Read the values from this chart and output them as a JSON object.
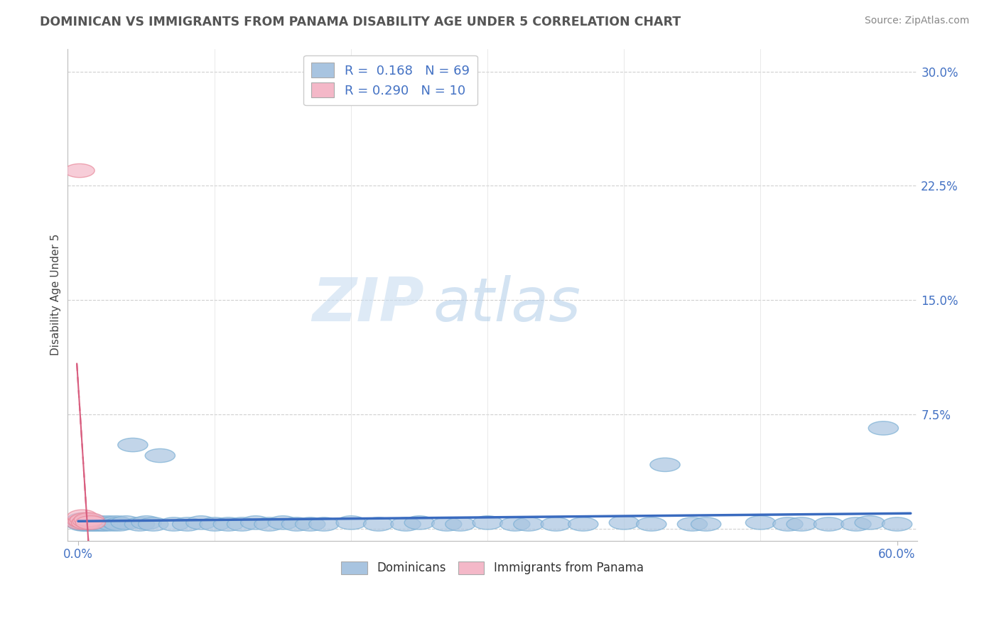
{
  "title": "DOMINICAN VS IMMIGRANTS FROM PANAMA DISABILITY AGE UNDER 5 CORRELATION CHART",
  "source": "Source: ZipAtlas.com",
  "ylabel": "Disability Age Under 5",
  "series1_name": "Dominicans",
  "series1_color": "#a8c4e0",
  "series1_edge_color": "#7aafd4",
  "series1_line_color": "#3a6bbf",
  "series1_R": 0.168,
  "series1_N": 69,
  "series2_name": "Immigrants from Panama",
  "series2_color": "#f4b8c8",
  "series2_edge_color": "#e8899a",
  "series2_line_color": "#d95f80",
  "series2_R": 0.29,
  "series2_N": 10,
  "xlim": [
    -0.008,
    0.615
  ],
  "ylim": [
    -0.008,
    0.315
  ],
  "yticks": [
    0.0,
    0.075,
    0.15,
    0.225,
    0.3
  ],
  "ytick_labels": [
    "",
    "7.5%",
    "15.0%",
    "22.5%",
    "30.0%"
  ],
  "xtick_left_label": "0.0%",
  "xtick_right_label": "60.0%",
  "watermark_zip": "ZIP",
  "watermark_atlas": "atlas",
  "background_color": "#ffffff",
  "grid_color": "#d0d0d0",
  "legend_R1": "R =  0.168",
  "legend_N1": "N = 69",
  "legend_R2": "R = 0.290",
  "legend_N2": "N = 10"
}
